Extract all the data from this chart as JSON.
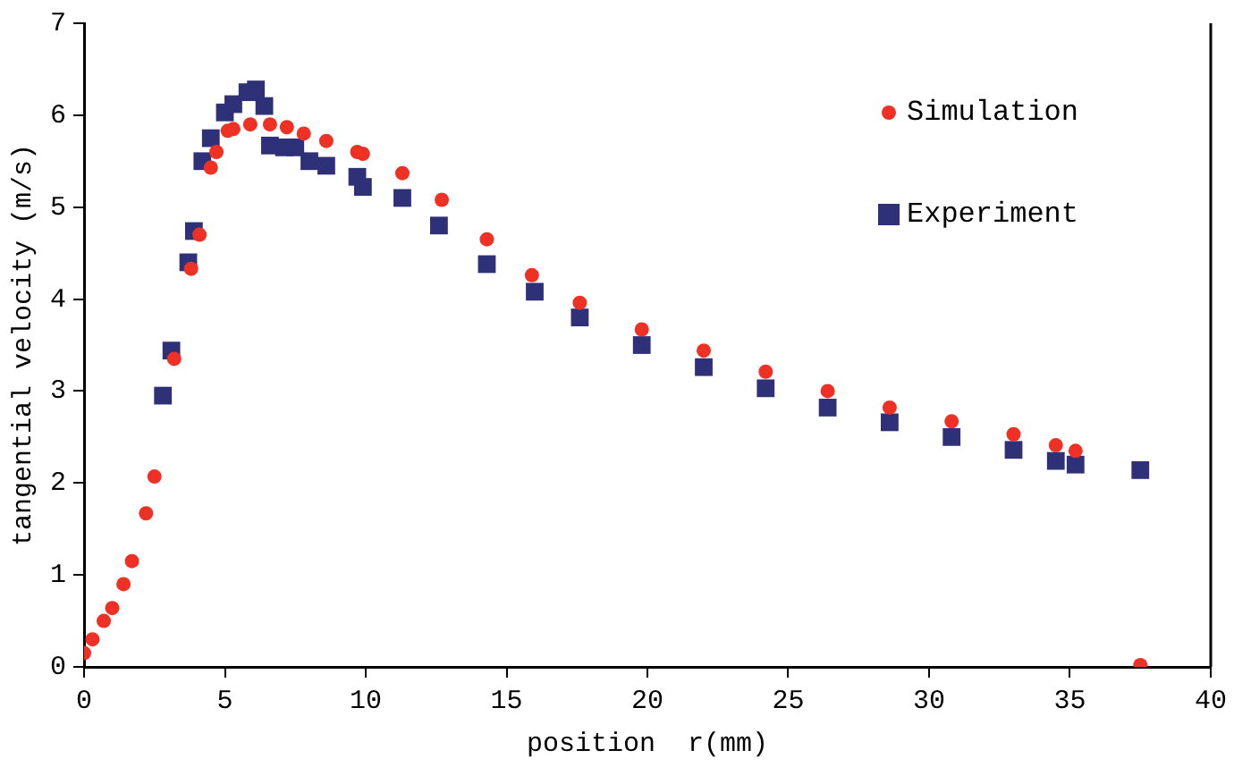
{
  "chart_data": {
    "type": "scatter",
    "xlabel": "position  r(mm)",
    "ylabel": "tangential velocity (m/s)",
    "xlim": [
      0,
      40
    ],
    "xticks": [
      0,
      5,
      10,
      15,
      20,
      25,
      30,
      35,
      40
    ],
    "ylim": [
      0,
      7
    ],
    "yticks": [
      0,
      1,
      2,
      3,
      4,
      5,
      6,
      7
    ],
    "grid": false,
    "legend": "top right",
    "series": [
      {
        "name": "Simulation",
        "color": "#ee3124",
        "marker": "circle",
        "x": [
          0,
          0.3,
          0.7,
          1.0,
          1.4,
          1.7,
          2.2,
          2.5,
          3.2,
          3.8,
          4.1,
          4.5,
          4.7,
          5.1,
          5.3,
          5.9,
          6.6,
          7.2,
          7.8,
          8.6,
          9.7,
          9.9,
          11.3,
          12.7,
          14.3,
          15.9,
          17.6,
          19.8,
          22.0,
          24.2,
          26.4,
          28.6,
          30.8,
          33.0,
          34.5,
          35.2,
          37.5
        ],
        "values": [
          0.15,
          0.3,
          0.5,
          0.64,
          0.9,
          1.15,
          1.67,
          2.07,
          3.35,
          4.33,
          4.7,
          5.43,
          5.6,
          5.83,
          5.85,
          5.9,
          5.9,
          5.87,
          5.8,
          5.72,
          5.6,
          5.58,
          5.37,
          5.08,
          4.65,
          4.26,
          3.96,
          3.67,
          3.44,
          3.21,
          3.0,
          2.82,
          2.67,
          2.53,
          2.41,
          2.35,
          0.02
        ]
      },
      {
        "name": "Experiment",
        "color": "#2e3078",
        "marker": "square",
        "x": [
          2.8,
          3.1,
          3.7,
          3.9,
          4.2,
          4.5,
          5.0,
          5.3,
          5.8,
          6.1,
          6.4,
          6.6,
          7.1,
          7.5,
          8.0,
          8.6,
          9.7,
          9.9,
          11.3,
          12.6,
          14.3,
          16.0,
          17.6,
          19.8,
          22.0,
          24.2,
          26.4,
          28.6,
          30.8,
          33.0,
          34.5,
          35.2,
          37.5
        ],
        "values": [
          2.95,
          3.44,
          4.4,
          4.74,
          5.5,
          5.75,
          6.03,
          6.12,
          6.25,
          6.28,
          6.1,
          5.67,
          5.65,
          5.65,
          5.5,
          5.45,
          5.33,
          5.22,
          5.1,
          4.8,
          4.38,
          4.08,
          3.8,
          3.5,
          3.26,
          3.03,
          2.82,
          2.66,
          2.5,
          2.36,
          2.24,
          2.2,
          2.14
        ]
      }
    ]
  }
}
